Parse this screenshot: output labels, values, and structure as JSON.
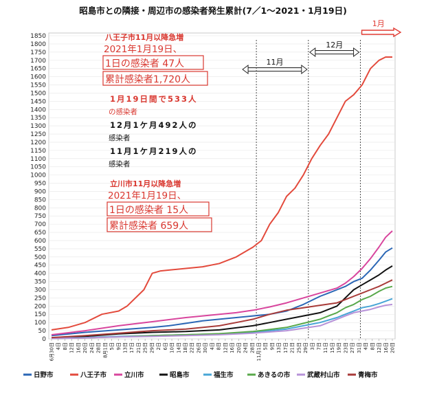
{
  "chart_data": {
    "type": "line",
    "title": "昭島市との隣接・周辺市の感染者発生累計(7／1～2021・1月19日)",
    "ylim": [
      0,
      1850
    ],
    "y_ticks": [
      0,
      50,
      100,
      150,
      200,
      250,
      300,
      350,
      400,
      450,
      500,
      550,
      600,
      650,
      700,
      750,
      800,
      850,
      900,
      950,
      1000,
      1050,
      1100,
      1150,
      1200,
      1250,
      1300,
      1350,
      1400,
      1450,
      1500,
      1550,
      1600,
      1650,
      1700,
      1750,
      1800,
      1850
    ],
    "x_tick_labels": [
      "6月30日",
      "4日",
      "8日",
      "12日",
      "16日",
      "20日",
      "24日",
      "28日",
      "8月1日",
      "5日",
      "9日",
      "13日",
      "17日",
      "21日",
      "25日",
      "29日",
      "2日",
      "6日",
      "10日",
      "14日",
      "18日",
      "22日",
      "26日",
      "30日",
      "4日",
      "8日",
      "12日",
      "16日",
      "20日",
      "24日",
      "28日",
      "11月1日",
      "5日",
      "9日",
      "13日",
      "17日",
      "21日",
      "25日",
      "29日",
      "3日",
      "7日",
      "11日",
      "15日",
      "19日",
      "23日",
      "27日",
      "31日",
      "4日",
      "8日",
      "12日",
      "16日",
      "20日"
    ],
    "series": [
      {
        "name": "日野市",
        "color": "#2a66b5",
        "x": [
          0,
          20,
          40,
          60,
          70,
          80,
          90,
          100,
          110,
          120,
          130,
          140,
          150,
          160,
          165,
          170,
          175,
          180,
          185,
          190,
          195,
          199,
          203
        ],
        "y": [
          20,
          40,
          55,
          70,
          80,
          95,
          110,
          120,
          130,
          140,
          150,
          170,
          210,
          260,
          280,
          300,
          320,
          350,
          370,
          420,
          480,
          530,
          555
        ]
      },
      {
        "name": "八王子市",
        "color": "#e34a3c",
        "x": [
          0,
          10,
          20,
          30,
          40,
          45,
          50,
          55,
          60,
          65,
          70,
          80,
          90,
          100,
          110,
          120,
          125,
          130,
          135,
          140,
          145,
          150,
          155,
          160,
          165,
          170,
          175,
          180,
          185,
          190,
          195,
          199,
          203
        ],
        "y": [
          55,
          70,
          100,
          150,
          170,
          200,
          250,
          300,
          400,
          415,
          420,
          430,
          440,
          460,
          500,
          560,
          600,
          700,
          770,
          870,
          920,
          1000,
          1100,
          1180,
          1250,
          1350,
          1450,
          1490,
          1550,
          1650,
          1700,
          1720,
          1720
        ]
      },
      {
        "name": "立川市",
        "color": "#d8459d",
        "x": [
          0,
          20,
          40,
          60,
          80,
          100,
          110,
          120,
          130,
          140,
          150,
          160,
          170,
          175,
          180,
          185,
          190,
          195,
          199,
          203
        ],
        "y": [
          25,
          50,
          80,
          105,
          130,
          150,
          160,
          175,
          195,
          220,
          250,
          280,
          310,
          340,
          380,
          430,
          490,
          560,
          620,
          659
        ]
      },
      {
        "name": "昭島市",
        "color": "#111111",
        "x": [
          0,
          20,
          40,
          60,
          80,
          100,
          120,
          130,
          140,
          150,
          160,
          165,
          170,
          175,
          180,
          185,
          190,
          195,
          199,
          203
        ],
        "y": [
          5,
          15,
          30,
          40,
          45,
          55,
          80,
          100,
          120,
          140,
          160,
          180,
          200,
          250,
          300,
          330,
          360,
          390,
          420,
          445
        ]
      },
      {
        "name": "福生市",
        "color": "#47a5d6",
        "x": [
          0,
          20,
          40,
          60,
          80,
          100,
          120,
          140,
          150,
          160,
          170,
          175,
          180,
          185,
          190,
          195,
          199,
          203
        ],
        "y": [
          3,
          8,
          15,
          20,
          25,
          30,
          40,
          60,
          80,
          100,
          130,
          150,
          170,
          190,
          200,
          215,
          230,
          245
        ]
      },
      {
        "name": "あきるの市",
        "color": "#58a84a",
        "x": [
          0,
          20,
          40,
          60,
          80,
          100,
          120,
          140,
          150,
          160,
          165,
          170,
          175,
          180,
          185,
          190,
          195,
          199,
          203
        ],
        "y": [
          2,
          6,
          12,
          20,
          25,
          32,
          45,
          70,
          95,
          120,
          140,
          160,
          190,
          210,
          240,
          260,
          290,
          310,
          320
        ]
      },
      {
        "name": "武蔵村山市",
        "color": "#b792d8",
        "x": [
          0,
          20,
          40,
          60,
          80,
          100,
          120,
          140,
          160,
          165,
          170,
          175,
          180,
          185,
          190,
          195,
          199,
          203
        ],
        "y": [
          2,
          6,
          12,
          15,
          20,
          25,
          35,
          50,
          80,
          100,
          120,
          140,
          160,
          170,
          180,
          195,
          205,
          210
        ]
      },
      {
        "name": "青梅市",
        "color": "#a83a38",
        "x": [
          0,
          20,
          40,
          60,
          80,
          100,
          110,
          120,
          130,
          140,
          150,
          160,
          170,
          175,
          180,
          185,
          190,
          195,
          199,
          203
        ],
        "y": [
          8,
          20,
          35,
          50,
          60,
          80,
          100,
          120,
          150,
          175,
          190,
          205,
          220,
          240,
          260,
          280,
          300,
          320,
          340,
          360
        ]
      }
    ],
    "periods": [
      {
        "label": "11月",
        "from": 122,
        "to": 153
      },
      {
        "label": "12月",
        "from": 153,
        "to": 184
      },
      {
        "label": "1月",
        "from": 184,
        "to": 203
      }
    ]
  },
  "annotations": {
    "hachioji": {
      "line1": "八王子市11月以降急増",
      "line2": "2021年1月19日、",
      "box1": "1日の感染者 47人",
      "box2": "累計感染者1,720人"
    },
    "monthly": {
      "line1": "1月19日間で533人",
      "line2": "の感染者",
      "line3": "12月1ケ月492人の",
      "line4": "感染者",
      "line5": "11月1ケ月219人の",
      "line6": "感染者"
    },
    "tachikawa": {
      "line1": "立川市11月以降急増",
      "line2": "2021年1月19日、",
      "box1": "1日の感染者 15人",
      "box2": "累計感染者 659人"
    }
  }
}
